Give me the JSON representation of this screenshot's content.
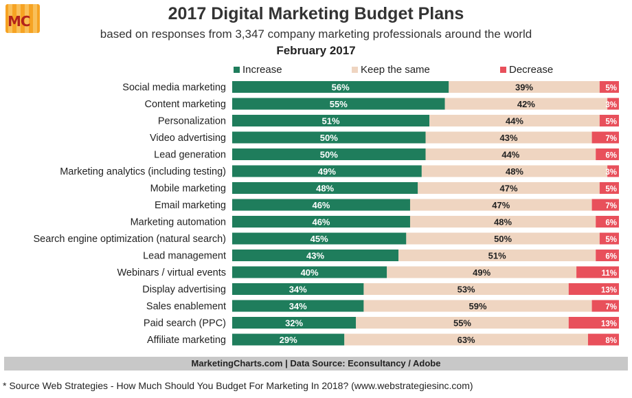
{
  "logo": {
    "text": "MC"
  },
  "colors": {
    "increase": "#1f7d5c",
    "keep": "#efd5c1",
    "decrease": "#e8505b",
    "footer": "#c8c8c8"
  },
  "source": "MarketingCharts.com | Data Source: Econsultancy / Adobe",
  "footnote": "* Source Web Strategies - How Much Should You Budget For Marketing In 2018?  (www.webstrategiesinc.com)",
  "chart_data": {
    "type": "bar",
    "orientation": "horizontal",
    "stacked": true,
    "title": "2017 Digital Marketing Budget Plans",
    "subtitle": "based on responses from 3,347 company marketing professionals around the world",
    "date": "February 2017",
    "legend_position": "top",
    "categories": [
      "Social  media marketing",
      "Content marketing",
      "Personalization",
      "Video advertising",
      "Lead generation",
      "Marketing analytics (including testing)",
      "Mobile marketing",
      "Email marketing",
      "Marketing automation",
      "Search engine optimization (natural search)",
      "Lead management",
      "Webinars / virtual events",
      "Display advertising",
      "Sales enablement",
      "Paid search (PPC)",
      "Affiliate marketing"
    ],
    "series": [
      {
        "name": "Increase",
        "color": "#1f7d5c",
        "values": [
          56,
          55,
          51,
          50,
          50,
          49,
          48,
          46,
          46,
          45,
          43,
          40,
          34,
          34,
          32,
          29
        ]
      },
      {
        "name": "Keep the same",
        "color": "#efd5c1",
        "values": [
          39,
          42,
          44,
          43,
          44,
          48,
          47,
          47,
          48,
          50,
          51,
          49,
          53,
          59,
          55,
          63
        ]
      },
      {
        "name": "Decrease",
        "color": "#e8505b",
        "values": [
          5,
          3,
          5,
          7,
          6,
          3,
          5,
          7,
          6,
          5,
          6,
          11,
          13,
          7,
          13,
          8
        ]
      }
    ],
    "value_suffix": "%",
    "grid": false
  }
}
